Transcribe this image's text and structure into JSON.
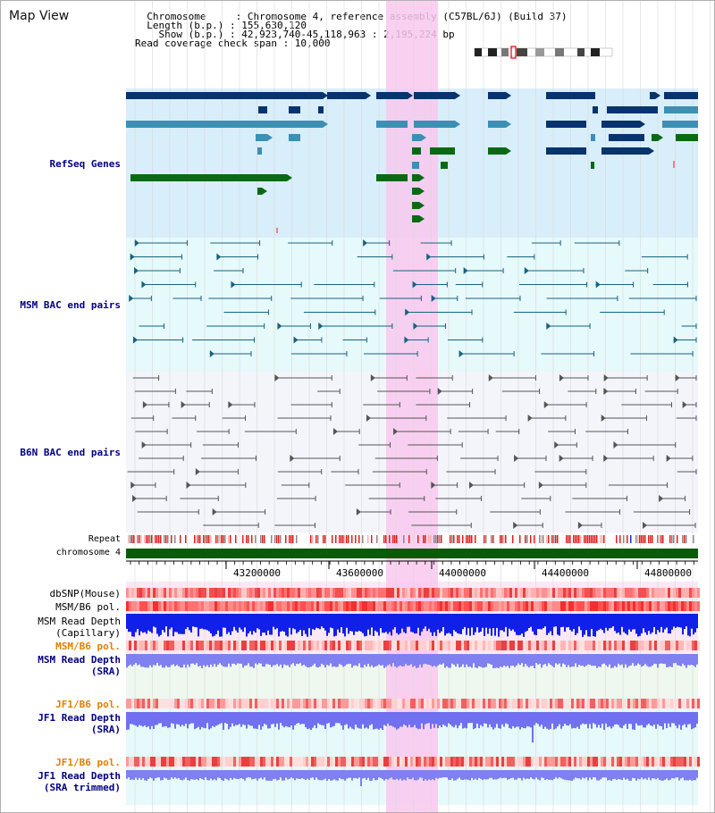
{
  "header": {
    "title": "Map View",
    "info_lines": [
      "  Chromosome     : Chromosome 4, reference assembly (C57BL/6J) (Build 37)",
      "  Length (b.p.) : 155,630,120",
      "    Show (b.p.) : 42,923,740-45,118,963 : 2,195,224 bp",
      "Read coverage check span : 10,000"
    ]
  },
  "tracks": {
    "refseq": {
      "label": "RefSeq Genes",
      "color": "#000080"
    },
    "msm_bac": {
      "label": "MSM BAC end pairs",
      "color": "#000080"
    },
    "b6n_bac": {
      "label": "B6N BAC end pairs",
      "color": "#000080"
    },
    "repeat": {
      "label": "Repeat"
    },
    "chromosome": {
      "label": "chromosome 4"
    },
    "dbsnp": {
      "label": "dbSNP(Mouse)"
    },
    "msm_b6_pol_1": {
      "label": "MSM/B6 pol."
    },
    "msm_read_depth_cap": {
      "label": "MSM Read Depth\n(Capillary)"
    },
    "msm_b6_pol_2": {
      "label": "MSM/B6 pol.",
      "color": "#e08000"
    },
    "msm_read_depth_sra": {
      "label": "MSM Read Depth\n(SRA)",
      "color": "#000080"
    },
    "jf1_b6_pol_1": {
      "label": "JF1/B6 pol.",
      "color": "#e08000"
    },
    "jf1_read_depth_sra": {
      "label": "JF1 Read Depth\n(SRA)",
      "color": "#000080"
    },
    "jf1_b6_pol_2": {
      "label": "JF1/B6 pol.",
      "color": "#e08000"
    },
    "jf1_read_depth_trim": {
      "label": "JF1 Read Depth\n(SRA trimmed)",
      "color": "#000080"
    }
  },
  "axis": {
    "ticks": [
      "43200000",
      "43600000",
      "44000000",
      "44400000",
      "44800000"
    ]
  },
  "colors": {
    "highlight": "#f9c8ef",
    "refseq_bg": "#d8eefa",
    "msm_bg": "#e6f9fb",
    "b6n_bg": "#f3f5fa",
    "gene_dark": "#07336e",
    "gene_mid": "#3d8fb3",
    "gene_green": "#0a6a14",
    "bac_msm": "#17637f",
    "bac_b6n": "#555555",
    "chrom_green": "#0a5a0a"
  }
}
